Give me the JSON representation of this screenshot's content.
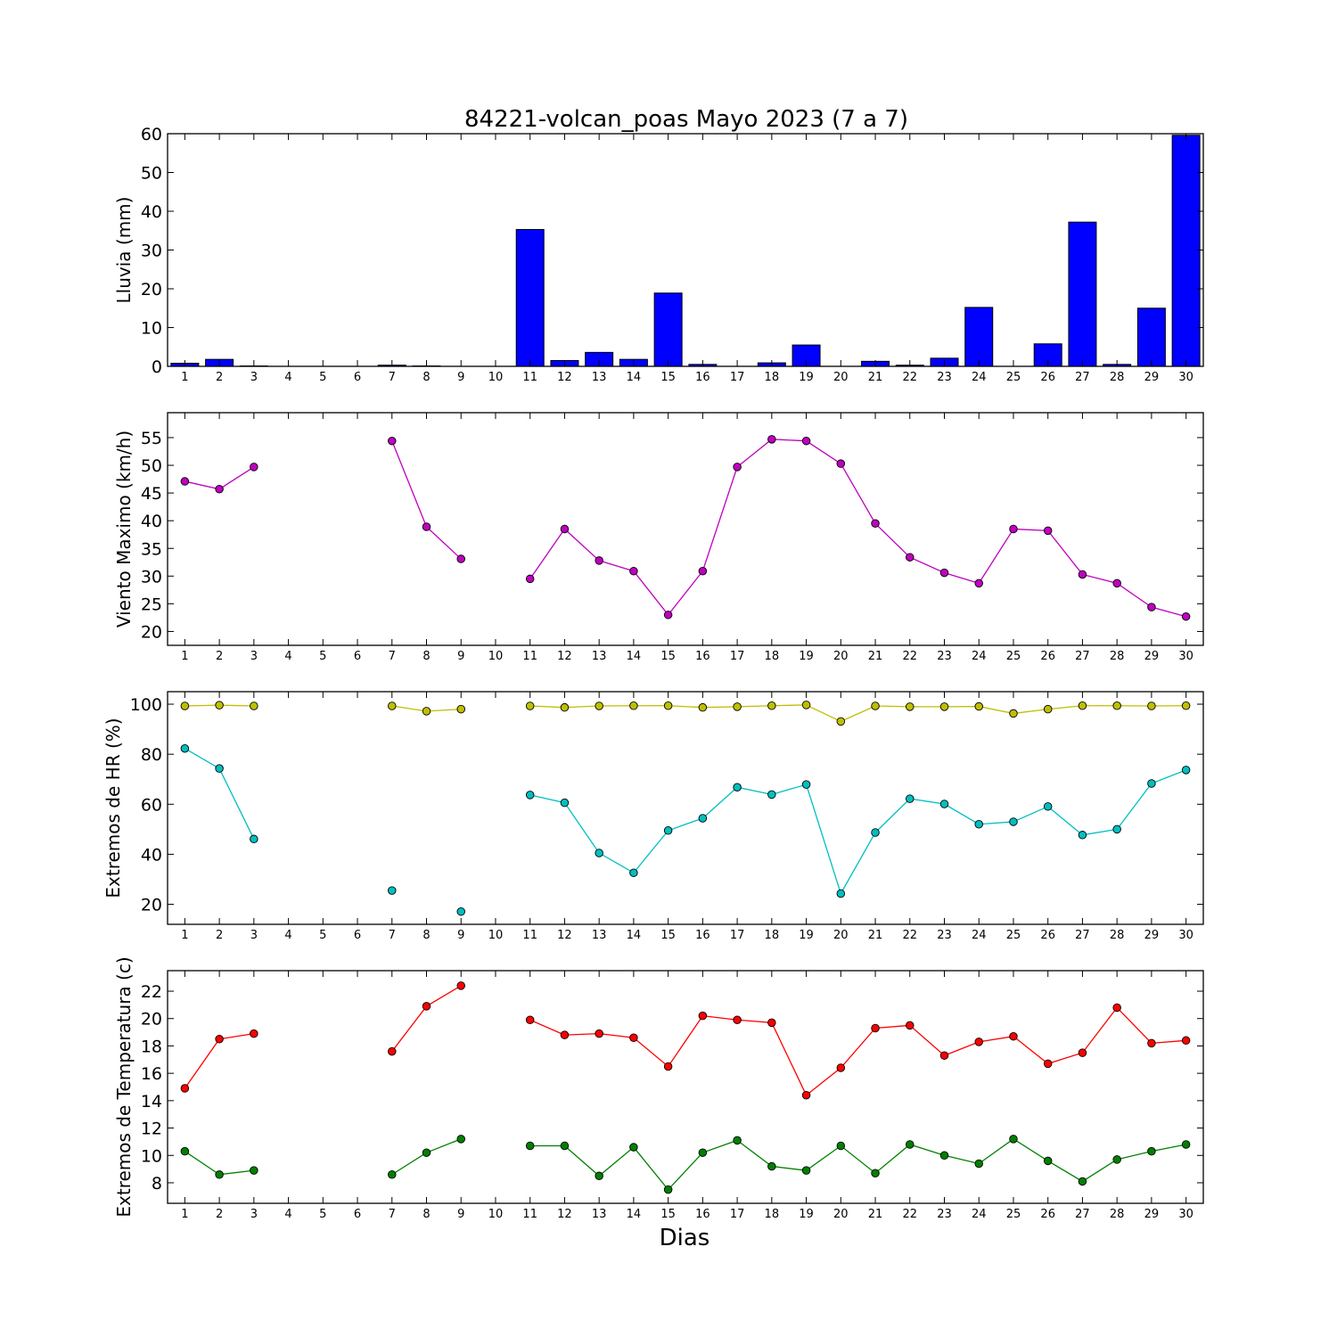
{
  "title": "84221-volcan_poas Mayo 2023  (7 a 7)",
  "xlabel": "Dias",
  "days": [
    1,
    2,
    3,
    4,
    5,
    6,
    7,
    8,
    9,
    10,
    11,
    12,
    13,
    14,
    15,
    16,
    17,
    18,
    19,
    20,
    21,
    22,
    23,
    24,
    25,
    26,
    27,
    28,
    29,
    30
  ],
  "chart_data": [
    {
      "type": "bar",
      "ylabel": "Lluvia (mm)",
      "ylim": [
        0,
        60
      ],
      "yticks": [
        0,
        10,
        20,
        30,
        40,
        50,
        60
      ],
      "categories": [
        1,
        2,
        3,
        4,
        5,
        6,
        7,
        8,
        9,
        10,
        11,
        12,
        13,
        14,
        15,
        16,
        17,
        18,
        19,
        20,
        21,
        22,
        23,
        24,
        25,
        26,
        27,
        28,
        29,
        30
      ],
      "series": [
        {
          "color": "#0000ff",
          "values": [
            0.8,
            1.8,
            0.1,
            0,
            0,
            0,
            0.3,
            0.1,
            0,
            0,
            35.3,
            1.5,
            3.6,
            1.8,
            18.9,
            0.5,
            0,
            0.9,
            5.5,
            0,
            1.3,
            0.3,
            2.1,
            15.2,
            0,
            5.8,
            37.2,
            0.5,
            15,
            59.6
          ]
        }
      ]
    },
    {
      "type": "line",
      "ylabel": "Viento Maximo (km/h)",
      "ylim": [
        17.5,
        59.5
      ],
      "yticks": [
        20,
        25,
        30,
        35,
        40,
        45,
        50,
        55
      ],
      "x": [
        1,
        2,
        3,
        4,
        5,
        6,
        7,
        8,
        9,
        10,
        11,
        12,
        13,
        14,
        15,
        16,
        17,
        18,
        19,
        20,
        21,
        22,
        23,
        24,
        25,
        26,
        27,
        28,
        29,
        30
      ],
      "series": [
        {
          "color": "#bf00bf",
          "values": [
            47.1,
            45.7,
            49.7,
            null,
            null,
            null,
            54.4,
            38.9,
            33.1,
            null,
            29.5,
            38.5,
            32.8,
            30.9,
            23.0,
            30.9,
            49.7,
            54.7,
            54.4,
            50.3,
            39.5,
            33.4,
            30.6,
            28.7,
            38.5,
            38.2,
            30.3,
            28.7,
            24.4,
            22.7
          ]
        }
      ]
    },
    {
      "type": "line",
      "ylabel": "Extremos de HR (%)",
      "ylim": [
        12,
        105
      ],
      "yticks": [
        20,
        40,
        60,
        80,
        100
      ],
      "x": [
        1,
        2,
        3,
        4,
        5,
        6,
        7,
        8,
        9,
        10,
        11,
        12,
        13,
        14,
        15,
        16,
        17,
        18,
        19,
        20,
        21,
        22,
        23,
        24,
        25,
        26,
        27,
        28,
        29,
        30
      ],
      "series": [
        {
          "color": "#bfbf00",
          "values": [
            99.3,
            99.6,
            99.3,
            null,
            null,
            null,
            99.3,
            97.2,
            98.0,
            null,
            99.3,
            98.7,
            99.3,
            99.4,
            99.4,
            98.7,
            99.0,
            99.4,
            99.7,
            93.1,
            99.3,
            99.0,
            99.0,
            99.1,
            96.3,
            98.0,
            99.4,
            99.4,
            99.3,
            99.4
          ]
        },
        {
          "color": "#00bfbf",
          "values": [
            82.3,
            74.3,
            46.1,
            null,
            null,
            null,
            25.5,
            null,
            17.1,
            null,
            63.7,
            60.6,
            40.5,
            32.6,
            49.5,
            54.4,
            66.8,
            63.9,
            67.9,
            24.3,
            48.7,
            62.2,
            60.1,
            52.0,
            53.0,
            59.1,
            47.7,
            50.0,
            68.3,
            73.7
          ]
        }
      ]
    },
    {
      "type": "line",
      "ylabel": "Extremos de Temperatura (c)",
      "ylim": [
        6.5,
        23.5
      ],
      "yticks": [
        8,
        10,
        12,
        14,
        16,
        18,
        20,
        22
      ],
      "x": [
        1,
        2,
        3,
        4,
        5,
        6,
        7,
        8,
        9,
        10,
        11,
        12,
        13,
        14,
        15,
        16,
        17,
        18,
        19,
        20,
        21,
        22,
        23,
        24,
        25,
        26,
        27,
        28,
        29,
        30
      ],
      "series": [
        {
          "color": "#ff0000",
          "values": [
            14.9,
            18.5,
            18.9,
            null,
            null,
            null,
            17.6,
            20.9,
            22.4,
            null,
            19.9,
            18.8,
            18.9,
            18.6,
            16.5,
            20.2,
            19.9,
            19.7,
            14.4,
            16.4,
            19.3,
            19.5,
            17.3,
            18.3,
            18.7,
            16.7,
            17.5,
            20.8,
            18.2,
            18.4
          ]
        },
        {
          "color": "#008000",
          "values": [
            10.3,
            8.6,
            8.9,
            null,
            null,
            null,
            8.6,
            10.2,
            11.2,
            null,
            10.7,
            10.7,
            8.5,
            10.6,
            7.5,
            10.2,
            11.1,
            9.2,
            8.9,
            10.7,
            8.7,
            10.8,
            10.0,
            9.4,
            11.2,
            9.6,
            8.1,
            9.7,
            10.3,
            10.8
          ]
        }
      ]
    }
  ]
}
